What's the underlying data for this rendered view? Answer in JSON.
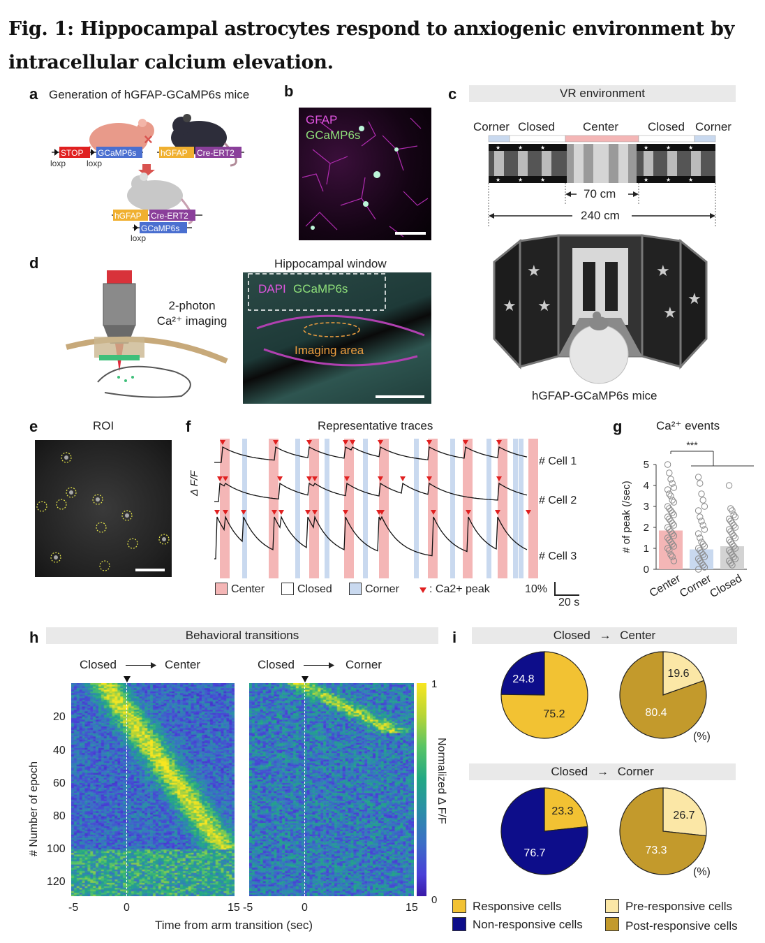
{
  "figure": {
    "title": "Fig. 1: Hippocampal astrocytes respond to anxiogenic environment by intracellular calcium elevation."
  },
  "panels": {
    "a": {
      "label": "a",
      "title": "Generation of hGFAP-GCaMP6s mice",
      "stop": "STOP",
      "gcamp": "GCaMP6s",
      "hgfap": "hGFAP",
      "creert2": "Cre-ERT2",
      "loxp": "loxp",
      "cross": "×"
    },
    "b": {
      "label": "b",
      "gfap": "GFAP",
      "gcamp": "GCaMP6s"
    },
    "c": {
      "label": "c",
      "header": "VR environment",
      "zones": [
        "Corner",
        "Closed",
        "Center",
        "Closed",
        "Corner"
      ],
      "dist_center": "70 cm",
      "dist_total": "240 cm",
      "mice": "hGFAP-GCaMP6s mice"
    },
    "d": {
      "label": "d",
      "imaging_line1": "2-photon",
      "imaging_line2": "Ca²⁺ imaging",
      "window_title": "Hippocampal window",
      "dapi": "DAPI",
      "gcamp": "GCaMP6s",
      "imaging_area": "Imaging area"
    },
    "e": {
      "label": "e",
      "title": "ROI"
    },
    "f": {
      "label": "f",
      "title": "Representative traces",
      "ylabel": "Δ F/F",
      "cells": [
        "# Cell 1",
        "# Cell 2",
        "# Cell 3"
      ],
      "legend_center": "Center",
      "legend_closed": "Closed",
      "legend_corner": "Corner",
      "legend_peak": ": Ca2+ peak",
      "scale_y": "10%",
      "scale_x": "20 s"
    },
    "g": {
      "label": "g",
      "title": "Ca²⁺ events",
      "significance": "***"
    },
    "h": {
      "label": "h",
      "header": "Behavioral transitions",
      "left_from": "Closed",
      "left_to": "Center",
      "right_from": "Closed",
      "right_to": "Corner",
      "ylabel": "# Number of epoch",
      "xlabel": "Time from arm transition (sec)",
      "yticks": [
        "20",
        "40",
        "60",
        "80",
        "100",
        "120"
      ],
      "xticks_left": [
        "-5",
        "0",
        "15"
      ],
      "xticks_right": [
        "-5",
        "0",
        "15"
      ],
      "cbar_label": "Normalized  Δ F/F",
      "cbar_max": "1",
      "cbar_min": "0"
    },
    "i": {
      "label": "i",
      "header1_from": "Closed",
      "header1_to": "Center",
      "header2_from": "Closed",
      "header2_to": "Corner",
      "percent_note": "(%)",
      "legend": {
        "responsive": "Responsive cells",
        "non_responsive": "Non-responsive cells",
        "pre_responsive": "Pre-responsive cells",
        "post_responsive": "Post-responsive cells"
      }
    }
  },
  "colors": {
    "responsive": "#f2c233",
    "non_responsive": "#0d0d8a",
    "pre_responsive": "#fbe7a6",
    "post_responsive": "#c39a2c",
    "center_shade": "#f4b6b6",
    "corner_shade": "#c9d9ef",
    "peak_marker": "#e02020"
  },
  "chart_data": [
    {
      "type": "bar",
      "panel": "g",
      "title": "Ca²⁺ events",
      "ylabel": "# of peak (/sec)",
      "categories": [
        "Center",
        "Corner",
        "Closed"
      ],
      "values": [
        1.85,
        0.95,
        1.1
      ],
      "ylim": [
        0,
        5
      ],
      "yticks": [
        0,
        1,
        2,
        3,
        4,
        5
      ],
      "points": {
        "Center": [
          5.0,
          4.6,
          4.3,
          4.1,
          3.9,
          3.8,
          3.6,
          3.5,
          3.3,
          3.2,
          3.0,
          2.9,
          2.8,
          2.7,
          2.6,
          2.5,
          2.4,
          2.3,
          2.2,
          2.1,
          2.0,
          1.9,
          1.8,
          1.7,
          1.6,
          1.5,
          1.4,
          1.3,
          1.2,
          1.1,
          1.0,
          0.9,
          0.7,
          0.6,
          0.4
        ],
        "Corner": [
          4.4,
          4.1,
          3.6,
          3.3,
          3.0,
          2.8,
          2.5,
          2.3,
          2.1,
          1.9,
          1.7,
          1.5,
          1.3,
          1.2,
          1.1,
          1.0,
          0.9,
          0.8,
          0.7,
          0.6,
          0.5,
          0.4,
          0.3,
          0.2,
          0.1,
          0.0
        ],
        "Closed": [
          4.0,
          2.9,
          2.8,
          2.6,
          2.5,
          2.4,
          2.3,
          2.2,
          2.1,
          2.0,
          1.9,
          1.8,
          1.7,
          1.6,
          1.5,
          1.4,
          1.3,
          1.2,
          1.1,
          1.0,
          0.9,
          0.8,
          0.7,
          0.6,
          0.5,
          0.4,
          0.3,
          0.2
        ]
      },
      "colors": [
        "#f4b6b6",
        "#c9d9ef",
        "#d3d3d3"
      ]
    },
    {
      "type": "pie",
      "panel": "i",
      "title": "Closed → Center",
      "labels": [
        "Non-responsive cells",
        "Responsive cells"
      ],
      "values": [
        24.8,
        75.2
      ],
      "colors": [
        "#0d0d8a",
        "#f2c233"
      ]
    },
    {
      "type": "pie",
      "panel": "i",
      "title": "Closed → Center",
      "labels": [
        "Pre-responsive cells",
        "Post-responsive cells"
      ],
      "values": [
        19.6,
        80.4
      ],
      "colors": [
        "#fbe7a6",
        "#c39a2c"
      ]
    },
    {
      "type": "pie",
      "panel": "i",
      "title": "Closed → Corner",
      "labels": [
        "Responsive cells",
        "Non-responsive cells"
      ],
      "values": [
        23.3,
        76.7
      ],
      "colors": [
        "#f2c233",
        "#0d0d8a"
      ]
    },
    {
      "type": "pie",
      "panel": "i",
      "title": "Closed → Corner",
      "labels": [
        "Pre-responsive cells",
        "Post-responsive cells"
      ],
      "values": [
        26.7,
        73.3
      ],
      "colors": [
        "#fbe7a6",
        "#c39a2c"
      ]
    }
  ]
}
